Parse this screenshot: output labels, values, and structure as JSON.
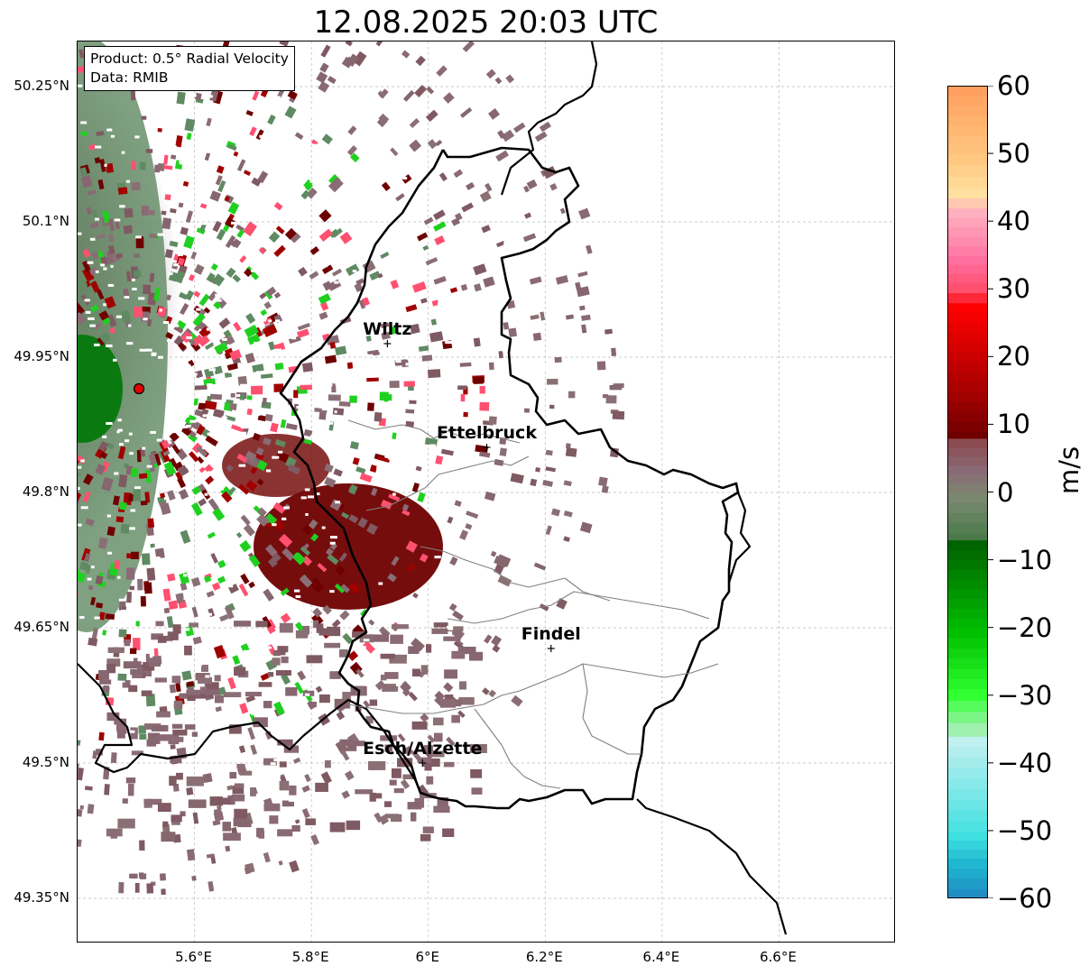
{
  "title": "12.08.2025 20:03 UTC",
  "info": {
    "product": "Product: 0.5° Radial Velocity",
    "data_source": "Data: RMIB"
  },
  "axes": {
    "lat_ticks": [
      "50.25°N",
      "50.1°N",
      "49.95°N",
      "49.8°N",
      "49.65°N",
      "49.5°N",
      "49.35°N"
    ],
    "lon_ticks": [
      "5.6°E",
      "5.8°E",
      "6°E",
      "6.2°E",
      "6.4°E",
      "6.6°E"
    ],
    "lon_range": [
      5.4,
      6.8
    ],
    "lat_range": [
      49.3,
      50.3
    ]
  },
  "places": [
    {
      "name": "Wiltz",
      "lon": 5.93,
      "lat": 49.965
    },
    {
      "name": "Ettelbruck",
      "lon": 6.1,
      "lat": 49.85
    },
    {
      "name": "Findel",
      "lon": 6.21,
      "lat": 49.627
    },
    {
      "name": "Esch/Alzette",
      "lon": 5.99,
      "lat": 49.5
    }
  ],
  "radar_site": {
    "lon": 5.505,
    "lat": 49.915,
    "color": "#e00000"
  },
  "colorbar": {
    "unit": "m/s",
    "ticks": [
      "60",
      "50",
      "40",
      "30",
      "20",
      "10",
      "0",
      "−10",
      "−20",
      "−30",
      "−40",
      "−50",
      "−60"
    ],
    "stops": [
      {
        "v": 60,
        "color": "#ffa060"
      },
      {
        "v": 50,
        "color": "#ffc880"
      },
      {
        "v": 45,
        "color": "#ffe0a0"
      },
      {
        "v": 42,
        "color": "#ffb0c0"
      },
      {
        "v": 35,
        "color": "#ff70a0"
      },
      {
        "v": 31,
        "color": "#ff5070"
      },
      {
        "v": 28,
        "color": "#ff0000"
      },
      {
        "v": 15,
        "color": "#a00000"
      },
      {
        "v": 9,
        "color": "#700000"
      },
      {
        "v": 8,
        "color": "#8a4a50"
      },
      {
        "v": 4,
        "color": "#8a6a74"
      },
      {
        "v": 0,
        "color": "#7a8870"
      },
      {
        "v": -6,
        "color": "#4a7a4a"
      },
      {
        "v": -7,
        "color": "#006400"
      },
      {
        "v": -20,
        "color": "#00c000"
      },
      {
        "v": -29,
        "color": "#30ff30"
      },
      {
        "v": -34,
        "color": "#a0f0b0"
      },
      {
        "v": -36,
        "color": "#c0f0f0"
      },
      {
        "v": -50,
        "color": "#40e0e0"
      },
      {
        "v": -54,
        "color": "#20b8d0"
      },
      {
        "v": -60,
        "color": "#2080c0"
      }
    ]
  },
  "colors": {
    "border": "#000000",
    "canton": "#808080",
    "grid": "#bbbbbb"
  }
}
